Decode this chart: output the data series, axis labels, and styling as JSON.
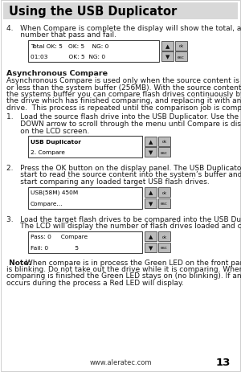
{
  "page_bg": "#ffffff",
  "title": "Using the USB Duplicator",
  "title_bg": "#d8d8d8",
  "title_color": "#000000",
  "footer_url": "www.aleratec.com",
  "footer_page": "13",
  "body_text_color": "#1a1a1a",
  "lcd1_lines": [
    "Total OK: 5   OK: 5    NG: 0",
    "01:03           OK: 5  NG: 0"
  ],
  "section_title": "Asynchronous Compare",
  "lcd2_lines": [
    "USB Duplicator",
    "2. Compare"
  ],
  "lcd3_lines": [
    "USB(58M) 450M",
    "Compare..."
  ],
  "lcd4_lines": [
    "Pass: 0     Compare",
    "Fail: 0              5"
  ],
  "lcd_bg": "#ffffff",
  "lcd_border": "#444444",
  "btn_bg": "#bbbbbb",
  "btn_border": "#444444"
}
